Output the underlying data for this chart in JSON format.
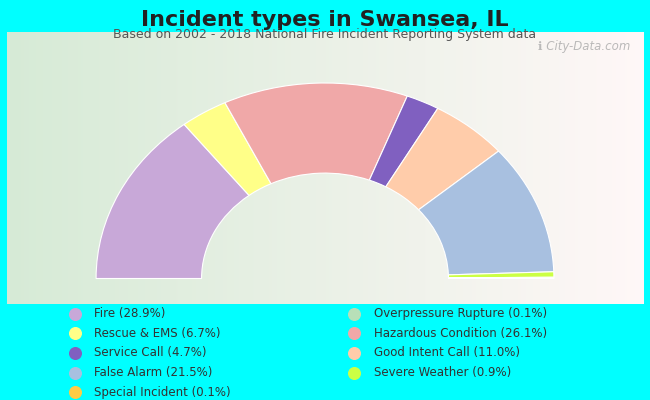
{
  "title": "Incident types in Swansea, IL",
  "subtitle": "Based on 2002 - 2018 National Fire Incident Reporting System data",
  "watermark": "ℹ City-Data.com",
  "bg_color": "#00FFFF",
  "chart_bg_left": "#d4e8d0",
  "chart_bg_right": "#f0f0f0",
  "categories": [
    "Fire",
    "Rescue & EMS",
    "Service Call",
    "False Alarm",
    "Special Incident",
    "Overpressure Rupture",
    "Hazardous Condition",
    "Good Intent Call",
    "Severe Weather"
  ],
  "values": [
    28.9,
    6.7,
    4.7,
    21.5,
    0.1,
    0.1,
    26.1,
    11.0,
    0.9
  ],
  "colors": [
    "#c8a8d8",
    "#ffff88",
    "#8060c0",
    "#a8c0e0",
    "#ffcc44",
    "#b8e0b8",
    "#f0a8a8",
    "#ffccaa",
    "#ccff44"
  ],
  "visual_order": [
    0,
    1,
    6,
    2,
    7,
    3,
    8,
    5,
    4
  ],
  "outer_r": 1.15,
  "inner_r": 0.62,
  "title_fontsize": 16,
  "subtitle_fontsize": 9,
  "legend_fontsize": 8.5
}
